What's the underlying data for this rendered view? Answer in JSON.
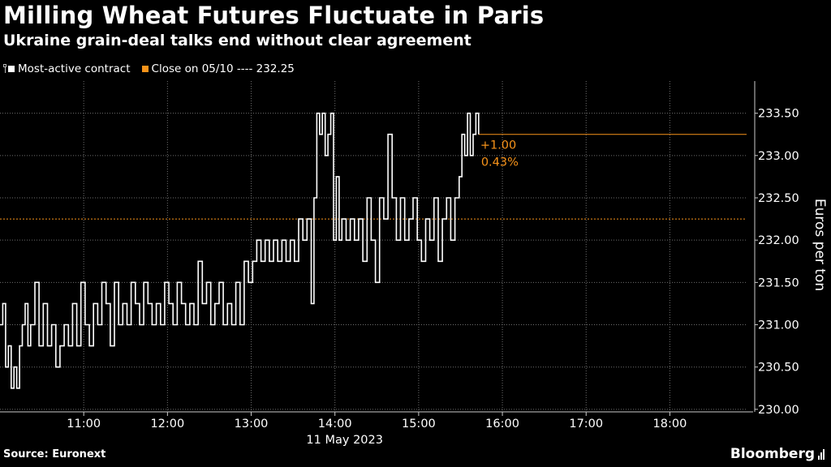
{
  "header": {
    "title": "Milling Wheat Futures Fluctuate in Paris",
    "subtitle": "Ukraine grain-deal talks end without clear agreement"
  },
  "legend": {
    "series_label": "Most-active contract",
    "close_label": "Close on 05/10 ---- 232.25"
  },
  "footer": {
    "source": "Source: Euronext",
    "brand": "Bloomberg"
  },
  "colors": {
    "background": "#000000",
    "series": "#ffffff",
    "reference": "#f7931a",
    "grid": "#6e6e6e"
  },
  "annotation": {
    "change": "+1.00",
    "percent": "0.43%"
  },
  "chart_data": {
    "type": "line",
    "title": "Milling Wheat Futures Fluctuate in Paris",
    "subtitle": "Ukraine grain-deal talks end without clear agreement",
    "ylabel": "Euros per ton",
    "xlabel": "11 May 2023",
    "x_ticks": [
      "11:00",
      "12:00",
      "13:00",
      "14:00",
      "15:00",
      "16:00",
      "17:00",
      "18:00"
    ],
    "y_ticks": [
      "230.00",
      "230.50",
      "231.00",
      "231.50",
      "232.00",
      "232.50",
      "233.00",
      "233.50"
    ],
    "ylim": [
      229.97,
      233.88
    ],
    "xlim": [
      "10:00",
      "18:55"
    ],
    "grid": true,
    "reference_line": {
      "label": "Close on 05/10",
      "value": 232.25
    },
    "last_value": 233.25,
    "series": [
      {
        "name": "Most-active contract",
        "x": [
          "10:00",
          "10:02",
          "10:04",
          "10:06",
          "10:08",
          "10:10",
          "10:12",
          "10:14",
          "10:16",
          "10:18",
          "10:20",
          "10:22",
          "10:25",
          "10:28",
          "10:31",
          "10:34",
          "10:37",
          "10:40",
          "10:43",
          "10:46",
          "10:49",
          "10:52",
          "10:55",
          "10:58",
          "11:01",
          "11:04",
          "11:07",
          "11:10",
          "11:13",
          "11:16",
          "11:19",
          "11:22",
          "11:25",
          "11:28",
          "11:31",
          "11:34",
          "11:37",
          "11:40",
          "11:43",
          "11:46",
          "11:49",
          "11:52",
          "11:55",
          "11:58",
          "12:01",
          "12:04",
          "12:07",
          "12:10",
          "12:13",
          "12:16",
          "12:19",
          "12:22",
          "12:25",
          "12:28",
          "12:31",
          "12:34",
          "12:37",
          "12:40",
          "12:43",
          "12:46",
          "12:49",
          "12:52",
          "12:55",
          "12:58",
          "13:01",
          "13:04",
          "13:07",
          "13:10",
          "13:13",
          "13:16",
          "13:19",
          "13:22",
          "13:25",
          "13:28",
          "13:31",
          "13:34",
          "13:37",
          "13:40",
          "13:43",
          "13:45",
          "13:47",
          "13:49",
          "13:51",
          "13:53",
          "13:55",
          "13:57",
          "13:59",
          "14:01",
          "14:03",
          "14:05",
          "14:08",
          "14:11",
          "14:14",
          "14:17",
          "14:20",
          "14:23",
          "14:26",
          "14:29",
          "14:32",
          "14:35",
          "14:38",
          "14:41",
          "14:44",
          "14:47",
          "14:50",
          "14:53",
          "14:56",
          "14:59",
          "15:02",
          "15:05",
          "15:08",
          "15:11",
          "15:14",
          "15:17",
          "15:20",
          "15:23",
          "15:26",
          "15:29",
          "15:31",
          "15:33",
          "15:35",
          "15:37",
          "15:39",
          "15:41",
          "15:43"
        ],
        "values": [
          231.0,
          231.25,
          230.5,
          230.75,
          230.25,
          230.5,
          230.25,
          230.75,
          231.0,
          231.25,
          230.75,
          231.0,
          231.5,
          230.75,
          231.25,
          230.75,
          231.0,
          230.5,
          230.75,
          231.0,
          230.75,
          231.25,
          230.75,
          231.5,
          231.0,
          230.75,
          231.25,
          231.0,
          231.5,
          231.25,
          230.75,
          231.5,
          231.0,
          231.25,
          231.0,
          231.5,
          231.25,
          231.0,
          231.5,
          231.25,
          231.0,
          231.25,
          231.0,
          231.5,
          231.25,
          231.0,
          231.5,
          231.25,
          231.0,
          231.25,
          231.0,
          231.75,
          231.25,
          231.5,
          231.0,
          231.25,
          231.5,
          231.0,
          231.25,
          231.0,
          231.5,
          231.0,
          231.75,
          231.5,
          231.75,
          232.0,
          231.75,
          232.0,
          231.75,
          232.0,
          231.75,
          232.0,
          231.75,
          232.0,
          231.75,
          232.25,
          232.0,
          232.25,
          231.25,
          232.5,
          233.5,
          233.25,
          233.5,
          233.0,
          233.25,
          233.5,
          232.0,
          232.75,
          232.0,
          232.25,
          232.0,
          232.25,
          232.0,
          232.25,
          231.75,
          232.5,
          232.0,
          231.5,
          232.5,
          232.25,
          233.25,
          232.5,
          232.0,
          232.5,
          232.0,
          232.25,
          232.5,
          232.0,
          231.75,
          232.25,
          232.0,
          232.5,
          231.75,
          232.25,
          232.5,
          232.0,
          232.5,
          232.75,
          233.25,
          233.0,
          233.5,
          233.0,
          233.25,
          233.5,
          233.25
        ]
      }
    ]
  }
}
